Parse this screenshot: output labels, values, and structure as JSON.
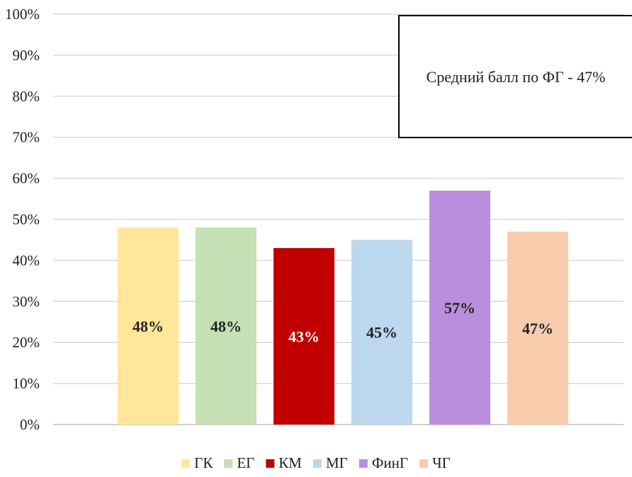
{
  "chart_data": {
    "type": "bar",
    "categories": [
      "ГК",
      "ЕГ",
      "КМ",
      "МГ",
      "ФинГ",
      "ЧГ"
    ],
    "values": [
      48,
      48,
      43,
      45,
      57,
      47
    ],
    "data_labels": [
      "48%",
      "48%",
      "43%",
      "45%",
      "57%",
      "47%"
    ],
    "colors": [
      "#FFE699",
      "#C5E0B4",
      "#C00000",
      "#BDD7EE",
      "#B98FDD",
      "#F8CBAD"
    ],
    "label_colors": [
      "#222222",
      "#222222",
      "#ffffff",
      "#222222",
      "#222222",
      "#222222"
    ],
    "ylim": [
      0,
      100
    ],
    "yticks": [
      0,
      10,
      20,
      30,
      40,
      50,
      60,
      70,
      80,
      90,
      100
    ],
    "ytick_labels": [
      "0%",
      "10%",
      "20%",
      "30%",
      "40%",
      "50%",
      "60%",
      "70%",
      "80%",
      "90%",
      "100%"
    ],
    "grid": true,
    "legend_position": "bottom",
    "annotation": "Средний балл по ФГ - 47%",
    "title": "",
    "xlabel": "",
    "ylabel": ""
  }
}
